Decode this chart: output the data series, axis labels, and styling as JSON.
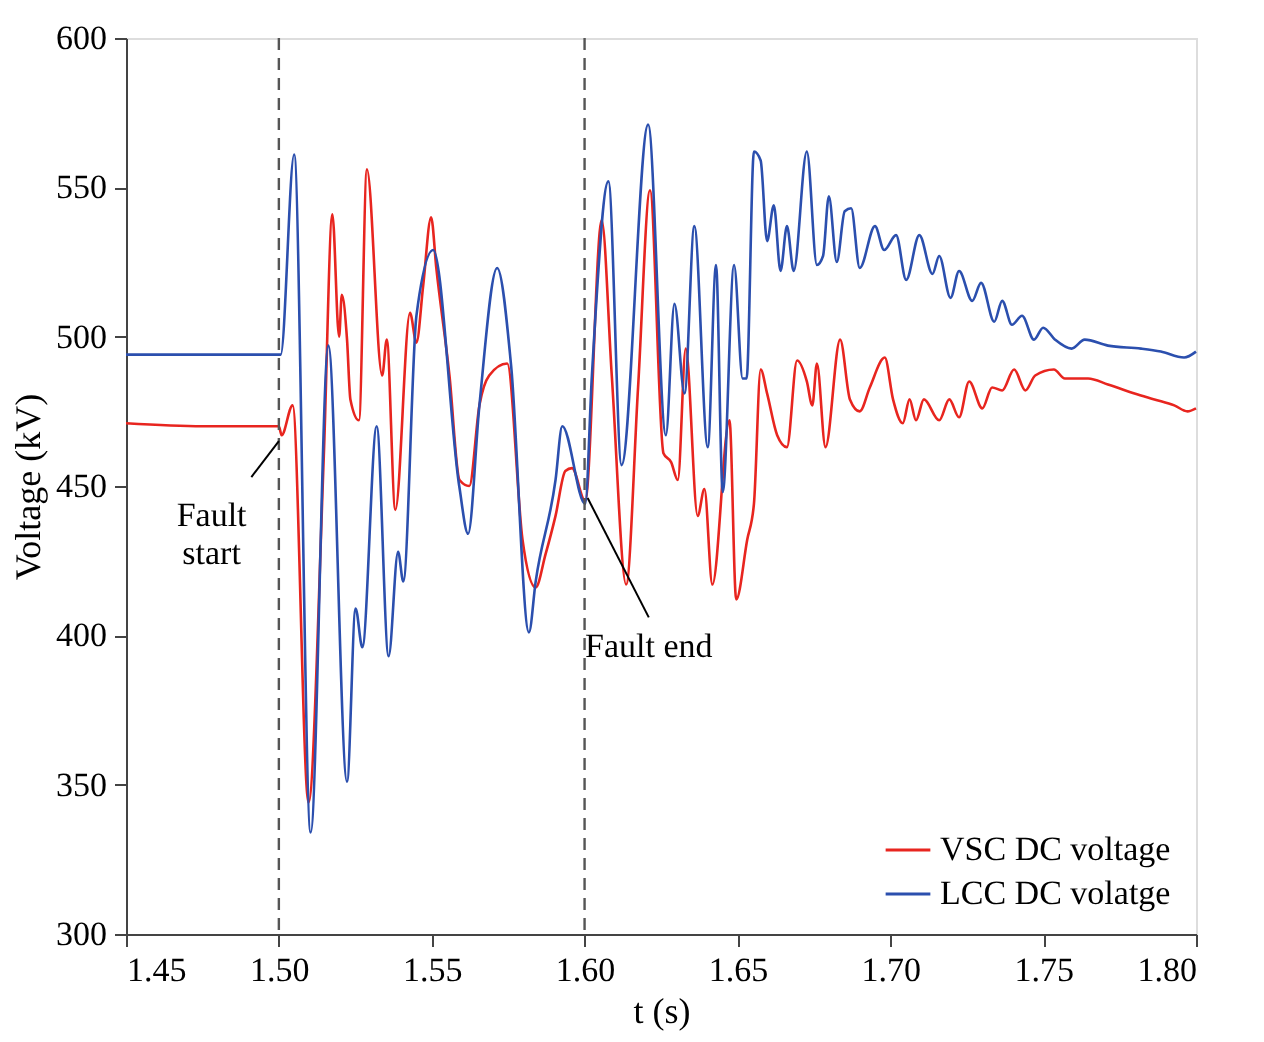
{
  "chart_data": {
    "type": "line",
    "xlabel": "t (s)",
    "ylabel": "Voltage (kV)",
    "xlim": [
      1.45,
      1.8
    ],
    "ylim": [
      300,
      600
    ],
    "xticks": [
      {
        "value": 1.45,
        "label": "1.45"
      },
      {
        "value": 1.5,
        "label": "1.50"
      },
      {
        "value": 1.55,
        "label": "1.55"
      },
      {
        "value": 1.6,
        "label": "1.60"
      },
      {
        "value": 1.65,
        "label": "1.65"
      },
      {
        "value": 1.7,
        "label": "1.70"
      },
      {
        "value": 1.75,
        "label": "1.75"
      },
      {
        "value": 1.8,
        "label": "1.80"
      }
    ],
    "yticks": [
      300,
      350,
      400,
      450,
      500,
      550,
      600
    ],
    "grid": false,
    "legend": "bottom right",
    "marker": "none",
    "line_style": "solid",
    "series": [
      {
        "name": "VSC DC voltage",
        "color": "#e8251f",
        "x": [
          1.45,
          1.475,
          1.5,
          1.5009,
          1.5045,
          1.5097,
          1.5147,
          1.5175,
          1.5197,
          1.5206,
          1.5223,
          1.5234,
          1.5262,
          1.5288,
          1.5338,
          1.5353,
          1.5381,
          1.5429,
          1.545,
          1.5472,
          1.5498,
          1.5515,
          1.5558,
          1.5591,
          1.5623,
          1.5656,
          1.5688,
          1.5747,
          1.5797,
          1.584,
          1.5872,
          1.5905,
          1.5937,
          1.5959,
          1.6002,
          1.6056,
          1.6089,
          1.6136,
          1.6175,
          1.6214,
          1.6258,
          1.6283,
          1.6305,
          1.6331,
          1.637,
          1.6392,
          1.6418,
          1.6474,
          1.6496,
          1.6532,
          1.6554,
          1.6576,
          1.6597,
          1.663,
          1.6662,
          1.6695,
          1.6727,
          1.6745,
          1.676,
          1.6788,
          1.6836,
          1.6868,
          1.69,
          1.6933,
          1.6982,
          1.7009,
          1.7041,
          1.7063,
          1.7084,
          1.711,
          1.716,
          1.7193,
          1.7225,
          1.7258,
          1.7301,
          1.7333,
          1.7366,
          1.7405,
          1.7442,
          1.7474,
          1.7535,
          1.7571,
          1.7647,
          1.7712,
          1.7799,
          1.7864,
          1.7929,
          1.7972,
          1.8
        ],
        "values": [
          471,
          470,
          470,
          467,
          477,
          344,
          460,
          541,
          500,
          514,
          499,
          479,
          472,
          556,
          487,
          499,
          442,
          508,
          498,
          517,
          540,
          523,
          487,
          452,
          450,
          477,
          487,
          491,
          432,
          416,
          427,
          440,
          455,
          456,
          445,
          539,
          487,
          417,
          483,
          549,
          461,
          458,
          452,
          496,
          440,
          449,
          417,
          472,
          412,
          432,
          444,
          489,
          481,
          467,
          463,
          492,
          485,
          477,
          491,
          463,
          499,
          479,
          475,
          483,
          493,
          479,
          471,
          479,
          472,
          479,
          472,
          479,
          473,
          485,
          476,
          483,
          482,
          489,
          482,
          487,
          489,
          486,
          486,
          484,
          481,
          479,
          477,
          475,
          476
        ]
      },
      {
        "name": "LCC DC volatge",
        "color": "#2b4fae",
        "x": [
          1.45,
          1.475,
          1.5006,
          1.505,
          1.5104,
          1.5162,
          1.5223,
          1.5251,
          1.5273,
          1.532,
          1.5359,
          1.539,
          1.5407,
          1.545,
          1.5505,
          1.559,
          1.5619,
          1.5656,
          1.5714,
          1.576,
          1.5818,
          1.584,
          1.5905,
          1.5927,
          1.6002,
          1.6024,
          1.6078,
          1.6121,
          1.6208,
          1.6266,
          1.6294,
          1.6327,
          1.6359,
          1.6403,
          1.643,
          1.6452,
          1.6489,
          1.6517,
          1.653,
          1.6554,
          1.6576,
          1.6597,
          1.6619,
          1.6641,
          1.6662,
          1.6684,
          1.6727,
          1.676,
          1.678,
          1.6799,
          1.6825,
          1.6851,
          1.6872,
          1.69,
          1.695,
          1.698,
          1.7019,
          1.7052,
          1.7095,
          1.7138,
          1.716,
          1.7197,
          1.7225,
          1.7268,
          1.7297,
          1.734,
          1.7366,
          1.7398,
          1.7431,
          1.747,
          1.75,
          1.7539,
          1.7593,
          1.7636,
          1.7712,
          1.782,
          1.7885,
          1.7961,
          1.8
        ],
        "values": [
          494,
          494,
          494,
          561,
          334,
          497,
          351,
          409,
          396,
          470,
          393,
          428,
          418,
          507,
          529,
          450,
          434,
          477,
          523,
          490,
          401,
          418,
          452,
          470,
          444,
          487,
          552,
          457,
          571,
          467,
          511,
          481,
          537,
          463,
          524,
          448,
          524,
          486,
          486,
          562,
          559,
          532,
          544,
          522,
          537,
          522,
          562,
          524,
          527,
          547,
          525,
          542,
          543,
          523,
          537,
          529,
          534,
          519,
          534,
          521,
          527,
          513,
          522,
          512,
          518,
          505,
          512,
          504,
          507,
          499,
          503,
          499,
          496,
          499,
          497,
          496,
          495,
          493,
          495
        ]
      }
    ],
    "ref_lines": [
      {
        "axis": "x",
        "value": 1.5,
        "color": "#555555",
        "line_style": "dashed"
      },
      {
        "axis": "x",
        "value": 1.6,
        "color": "#555555",
        "line_style": "dashed"
      }
    ],
    "annotations": [
      {
        "text": "Fault\nstart",
        "x": 1.5,
        "y": 465
      },
      {
        "text": "Fault end",
        "x": 1.601,
        "y": 446
      }
    ]
  }
}
